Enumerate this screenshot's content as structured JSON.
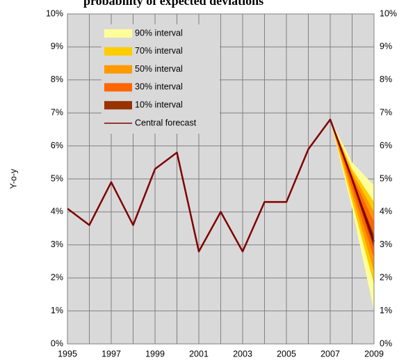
{
  "chart_data": {
    "type": "fan",
    "title": "probability of expected deviations",
    "ylabel": "Y-o-y",
    "xlim": [
      1995,
      2009
    ],
    "xticks": [
      1995,
      1997,
      1999,
      2001,
      2003,
      2005,
      2007,
      2009
    ],
    "xminor_ticks": [
      1996,
      1998,
      2000,
      2002,
      2004,
      2006,
      2008
    ],
    "ylim": [
      0,
      10
    ],
    "yticks": [
      {
        "value": 0,
        "label": "0%"
      },
      {
        "value": 1,
        "label": "1%"
      },
      {
        "value": 2,
        "label": "2%"
      },
      {
        "value": 3,
        "label": "3%"
      },
      {
        "value": 4,
        "label": "4%"
      },
      {
        "value": 5,
        "label": "5%"
      },
      {
        "value": 6,
        "label": "6%"
      },
      {
        "value": 7,
        "label": "7%"
      },
      {
        "value": 8,
        "label": "8%"
      },
      {
        "value": 9,
        "label": "9%"
      },
      {
        "value": 10,
        "label": "10%"
      }
    ],
    "grid": true,
    "legend": "top-left",
    "bands": [
      {
        "name": "90% interval",
        "color": "#ffff99",
        "x": [
          2007,
          2008,
          2009
        ],
        "lower": [
          6.8,
          4.1,
          1.0
        ],
        "upper": [
          6.8,
          5.5,
          4.8
        ]
      },
      {
        "name": "70% interval",
        "color": "#ffcc00",
        "x": [
          2007,
          2008,
          2009
        ],
        "lower": [
          6.8,
          4.3,
          1.8
        ],
        "upper": [
          6.8,
          5.3,
          4.3
        ]
      },
      {
        "name": "50% interval",
        "color": "#ff9900",
        "x": [
          2007,
          2008,
          2009
        ],
        "lower": [
          6.8,
          4.5,
          2.2
        ],
        "upper": [
          6.8,
          5.2,
          4.0
        ]
      },
      {
        "name": "30% interval",
        "color": "#ff6600",
        "x": [
          2007,
          2008,
          2009
        ],
        "lower": [
          6.8,
          4.7,
          2.6
        ],
        "upper": [
          6.8,
          5.1,
          3.7
        ]
      },
      {
        "name": "10% interval",
        "color": "#993300",
        "x": [
          2007,
          2008,
          2009
        ],
        "lower": [
          6.8,
          4.9,
          2.9
        ],
        "upper": [
          6.8,
          5.0,
          3.3
        ]
      }
    ],
    "series": [
      {
        "name": "Central forecast",
        "color": "#800000",
        "x": [
          1995,
          1996,
          1997,
          1998,
          1999,
          2000,
          2001,
          2002,
          2003,
          2004,
          2005,
          2006,
          2007,
          2008,
          2009
        ],
        "values": [
          4.1,
          3.6,
          4.9,
          3.6,
          5.3,
          5.8,
          2.8,
          4.0,
          2.8,
          4.3,
          4.3,
          5.9,
          6.8,
          5.0,
          3.1
        ]
      }
    ]
  }
}
